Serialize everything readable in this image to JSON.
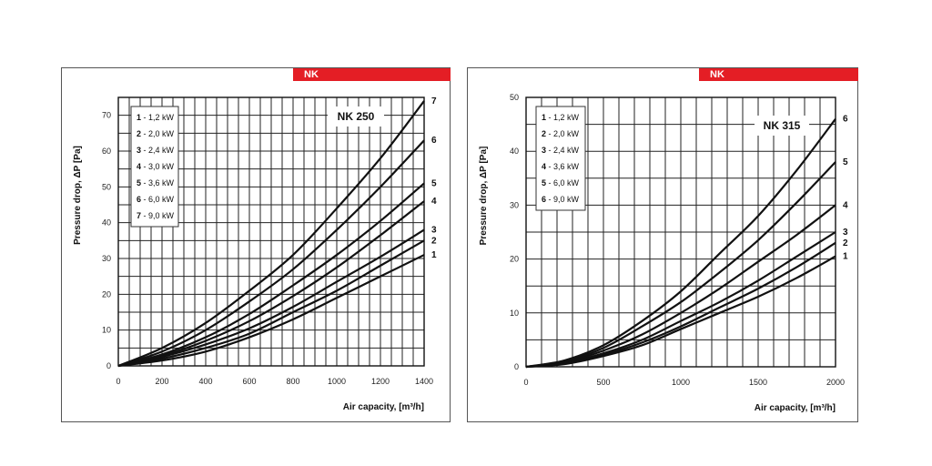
{
  "chart_data": [
    {
      "type": "line",
      "brand": "NK",
      "title": "NK 250",
      "xlabel": "Air capacity, [m³/h]",
      "ylabel": "Pressure drop, ΔP [Pa]",
      "xlim": [
        0,
        1400
      ],
      "ylim": [
        0,
        75
      ],
      "xticks": [
        0,
        200,
        400,
        600,
        800,
        1000,
        1200,
        1400
      ],
      "yticks": [
        0,
        10,
        20,
        30,
        40,
        50,
        60,
        70
      ],
      "grid": true,
      "legend_position": "top-left",
      "legend": [
        {
          "num": "1",
          "text": "- 1,2 kW"
        },
        {
          "num": "2",
          "text": "- 2,0 kW"
        },
        {
          "num": "3",
          "text": "- 2,4 kW"
        },
        {
          "num": "4",
          "text": "- 3,0 kW"
        },
        {
          "num": "5",
          "text": "- 3,6 kW"
        },
        {
          "num": "6",
          "text": "- 6,0 kW"
        },
        {
          "num": "7",
          "text": "- 9,0 kW"
        }
      ],
      "series": [
        {
          "name": "1",
          "x": [
            0,
            200,
            400,
            600,
            800,
            1000,
            1200,
            1400
          ],
          "values": [
            0,
            1.5,
            4,
            8,
            13,
            19,
            25,
            31
          ]
        },
        {
          "name": "2",
          "x": [
            0,
            200,
            400,
            600,
            800,
            1000,
            1200,
            1400
          ],
          "values": [
            0,
            2,
            5,
            9,
            15,
            21,
            28,
            35
          ]
        },
        {
          "name": "3",
          "x": [
            0,
            200,
            400,
            600,
            800,
            1000,
            1200,
            1400
          ],
          "values": [
            0,
            2.5,
            6,
            10.5,
            16.5,
            23.5,
            30.5,
            38
          ]
        },
        {
          "name": "4",
          "x": [
            0,
            200,
            400,
            600,
            800,
            1000,
            1200,
            1400
          ],
          "values": [
            0,
            2.8,
            7,
            12.5,
            19.5,
            27.5,
            36.5,
            46
          ]
        },
        {
          "name": "5",
          "x": [
            0,
            200,
            400,
            600,
            800,
            1000,
            1200,
            1400
          ],
          "values": [
            0,
            3.2,
            8,
            14.5,
            22.5,
            31,
            40.5,
            51
          ]
        },
        {
          "name": "6",
          "x": [
            0,
            200,
            400,
            600,
            800,
            1000,
            1200,
            1400
          ],
          "values": [
            0,
            4,
            10,
            18,
            27,
            38,
            50,
            63
          ]
        },
        {
          "name": "7",
          "x": [
            0,
            200,
            400,
            600,
            800,
            1000,
            1200,
            1400
          ],
          "values": [
            0,
            5,
            12,
            21,
            31,
            44,
            58,
            74
          ]
        }
      ]
    },
    {
      "type": "line",
      "brand": "NK",
      "title": "NK 315",
      "xlabel": "Air capacity, [m³/h]",
      "ylabel": "Pressure drop, ΔP [Pa]",
      "xlim": [
        0,
        2000
      ],
      "ylim": [
        0,
        50
      ],
      "xticks": [
        0,
        500,
        1000,
        1500,
        2000
      ],
      "yticks": [
        0,
        10,
        20,
        30,
        40,
        50
      ],
      "grid": true,
      "legend_position": "top-left",
      "legend": [
        {
          "num": "1",
          "text": "- 1,2 kW"
        },
        {
          "num": "2",
          "text": "- 2,0 kW"
        },
        {
          "num": "3",
          "text": "- 2,4 kW"
        },
        {
          "num": "4",
          "text": "- 3,6 kW"
        },
        {
          "num": "5",
          "text": "- 6,0 kW"
        },
        {
          "num": "6",
          "text": "- 9,0 kW"
        }
      ],
      "series": [
        {
          "name": "1",
          "x": [
            0,
            250,
            500,
            750,
            1000,
            1250,
            1500,
            1750,
            2000
          ],
          "values": [
            0,
            0.5,
            2,
            4,
            7,
            10,
            13,
            16.5,
            20.5
          ]
        },
        {
          "name": "2",
          "x": [
            0,
            250,
            500,
            750,
            1000,
            1250,
            1500,
            1750,
            2000
          ],
          "values": [
            0,
            0.6,
            2.2,
            4.5,
            7.5,
            11,
            14.5,
            18.5,
            23
          ]
        },
        {
          "name": "3",
          "x": [
            0,
            250,
            500,
            750,
            1000,
            1250,
            1500,
            1750,
            2000
          ],
          "values": [
            0,
            0.7,
            2.5,
            5,
            8.5,
            12,
            16,
            20.5,
            25
          ]
        },
        {
          "name": "4",
          "x": [
            0,
            250,
            500,
            750,
            1000,
            1250,
            1500,
            1750,
            2000
          ],
          "values": [
            0,
            0.8,
            3,
            6,
            10,
            14.5,
            19.5,
            24.5,
            30
          ]
        },
        {
          "name": "5",
          "x": [
            0,
            250,
            500,
            750,
            1000,
            1250,
            1500,
            1750,
            2000
          ],
          "values": [
            0,
            1,
            3.5,
            7.5,
            12,
            17.5,
            23.5,
            30.5,
            38
          ]
        },
        {
          "name": "6",
          "x": [
            0,
            250,
            500,
            750,
            1000,
            1250,
            1500,
            1750,
            2000
          ],
          "values": [
            0,
            1.2,
            4,
            8.5,
            14,
            21,
            28,
            36.5,
            46
          ]
        }
      ]
    }
  ]
}
